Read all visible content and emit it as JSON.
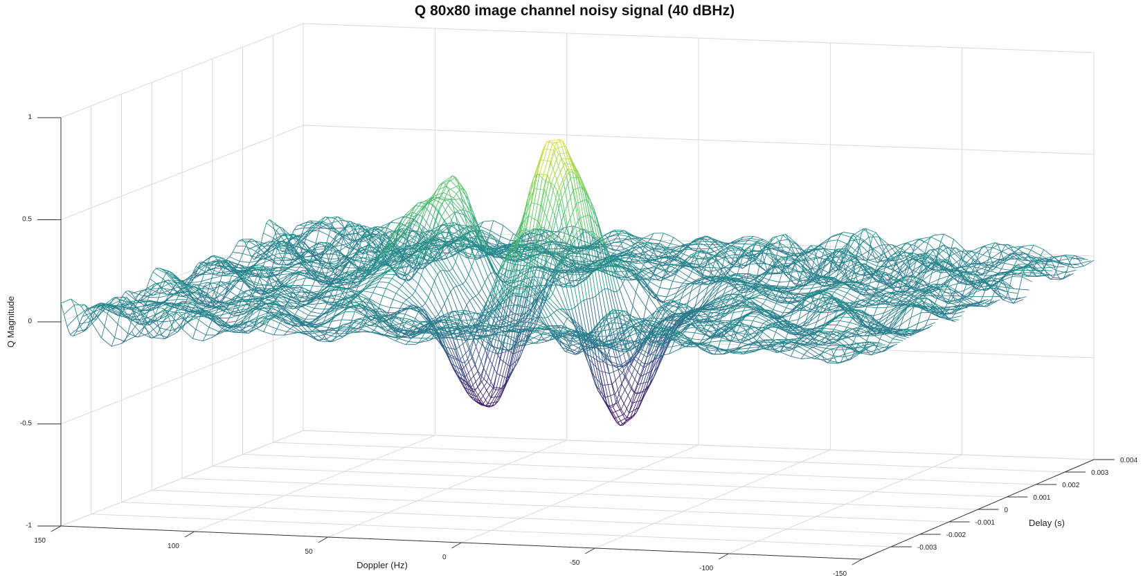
{
  "chart_data": {
    "type": "surface-mesh",
    "title": "Q 80x80 image channel noisy signal (40 dBHz)",
    "xlabel": "Doppler (Hz)",
    "ylabel": "Delay (s)",
    "zlabel": "Q Magnitude",
    "x_ticks": [
      "150",
      "100",
      "50",
      "0",
      "-50",
      "-100",
      "-150"
    ],
    "y_ticks": [
      "-0.003",
      "-0.002",
      "-0.001",
      "0",
      "0.001",
      "0.002",
      "0.003",
      "0.004"
    ],
    "z_ticks": [
      "1",
      "0.5",
      "0",
      "-0.5",
      "-1"
    ],
    "x_range": [
      -150,
      150
    ],
    "y_range": [
      -0.004,
      0.004
    ],
    "z_range": [
      -1,
      1
    ],
    "grid": true,
    "colormap": "viridis",
    "grid_size": 80,
    "features": [
      {
        "doppler": 0,
        "delay": -0.0008,
        "q": 0.82
      },
      {
        "doppler": 25,
        "delay": -0.0008,
        "q": -0.58
      },
      {
        "doppler": -25,
        "delay": -0.0008,
        "q": -0.6
      },
      {
        "doppler": 60,
        "delay": 0.0005,
        "q": 0.45
      }
    ],
    "noise_level": 0.1
  }
}
